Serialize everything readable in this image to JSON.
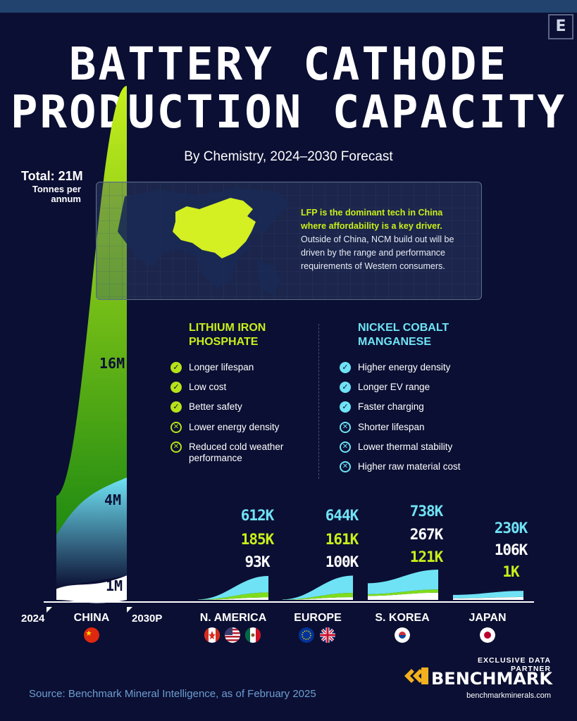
{
  "header": {
    "title_line1": "BATTERY CATHODE",
    "title_line2": "PRODUCTION CAPACITY",
    "subtitle": "By Chemistry, 2024–2030 Forecast",
    "logo_letter": "E"
  },
  "total": {
    "label": "Total: 21M",
    "unit": "Tonnes per annum"
  },
  "callout": {
    "highlight": "LFP is the dominant tech in China where affordability is a key driver.",
    "body": "Outside of China, NCM build out will be driven by the range and performance requirements of Western consumers."
  },
  "lfp": {
    "title": "LITHIUM IRON PHOSPHATE",
    "pros": [
      "Longer lifespan",
      "Low cost",
      "Better safety"
    ],
    "cons": [
      "Lower energy density",
      "Reduced cold weather performance"
    ]
  },
  "ncm": {
    "title": "NICKEL COBALT MANGANESE",
    "pros": [
      "Higher energy density",
      "Longer EV range",
      "Faster charging"
    ],
    "cons": [
      "Shorter lifespan",
      "Lower thermal stability",
      "Higher raw material cost"
    ]
  },
  "colors": {
    "lfp": "#7fdc1c",
    "ncm": "#6fe3f5",
    "other": "#ffffff",
    "background": "#0b0f33"
  },
  "chart_data": {
    "type": "area",
    "x": [
      "2024",
      "2030P"
    ],
    "series_order": [
      "Other",
      "NCM",
      "LFP"
    ],
    "china": {
      "label": "CHINA",
      "year_start": "2024",
      "year_end": "2030P",
      "values_2030": {
        "LFP": 16000000,
        "NCM": 4000000,
        "Other": 1000000
      },
      "labels": {
        "LFP": "16M",
        "NCM": "4M",
        "Other": "1M"
      }
    },
    "regions": [
      {
        "name": "N. AMERICA",
        "NCM": 612000,
        "LFP": 185000,
        "Other": 93000,
        "labels": {
          "NCM": "612K",
          "LFP": "185K",
          "Other": "93K"
        },
        "label_order": [
          "NCM",
          "LFP",
          "Other"
        ],
        "flags": [
          "canada-flag",
          "usa-flag",
          "mexico-flag"
        ]
      },
      {
        "name": "EUROPE",
        "NCM": 644000,
        "LFP": 161000,
        "Other": 100000,
        "labels": {
          "NCM": "644K",
          "LFP": "161K",
          "Other": "100K"
        },
        "label_order": [
          "NCM",
          "LFP",
          "Other"
        ],
        "flags": [
          "eu-flag",
          "uk-flag"
        ]
      },
      {
        "name": "S. KOREA",
        "NCM": 738000,
        "LFP": 121000,
        "Other": 267000,
        "labels": {
          "NCM": "738K",
          "LFP": "121K",
          "Other": "267K"
        },
        "label_order": [
          "NCM",
          "Other",
          "LFP"
        ],
        "flags": [
          "south-korea-flag"
        ]
      },
      {
        "name": "JAPAN",
        "NCM": 230000,
        "LFP": 1000,
        "Other": 106000,
        "labels": {
          "NCM": "230K",
          "LFP": "1K",
          "Other": "106K"
        },
        "label_order": [
          "NCM",
          "Other",
          "LFP"
        ],
        "flags": [
          "japan-flag"
        ]
      }
    ]
  },
  "footer": {
    "source": "Source: Benchmark Mineral Intelligence,  as of February 2025",
    "partner_label": "EXCLUSIVE DATA PARTNER",
    "partner_name": "BENCHMARK",
    "partner_url": "benchmarkminerals.com"
  }
}
